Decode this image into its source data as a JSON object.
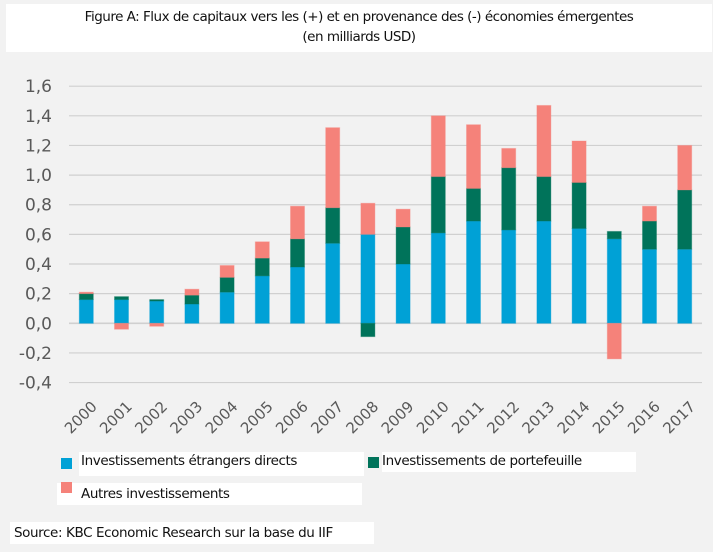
{
  "chart_data": {
    "type": "bar",
    "stacked": true,
    "title": "Figure A: Flux de capitaux vers les (+) et en provenance des (-) économies émergentes",
    "subtitle": "(en milliards USD)",
    "xlabel": "",
    "ylabel": "",
    "ylim": [
      -0.4,
      1.6
    ],
    "yticks": [
      -0.4,
      -0.2,
      0.0,
      0.2,
      0.4,
      0.6,
      0.8,
      1.0,
      1.2,
      1.4,
      1.6
    ],
    "ytick_labels": [
      "-0,4",
      "-0,2",
      "0,0",
      "0,2",
      "0,4",
      "0,6",
      "0,8",
      "1,0",
      "1,2",
      "1,4",
      "1,6"
    ],
    "grid": true,
    "legend_position": "bottom",
    "categories": [
      "2000",
      "2001",
      "2002",
      "2003",
      "2004",
      "2005",
      "2006",
      "2007",
      "2008",
      "2009",
      "2010",
      "2011",
      "2012",
      "2013",
      "2014",
      "2015",
      "2016",
      "2017"
    ],
    "series": [
      {
        "name": "Investissements étrangers directs",
        "color": "#00a1d6",
        "values": [
          0.16,
          0.16,
          0.15,
          0.13,
          0.21,
          0.32,
          0.38,
          0.54,
          0.6,
          0.4,
          0.61,
          0.69,
          0.63,
          0.69,
          0.64,
          0.57,
          0.5,
          0.5
        ]
      },
      {
        "name": "Investissements de portefeuille",
        "color": "#00735a",
        "values": [
          0.04,
          0.02,
          0.01,
          0.06,
          0.1,
          0.12,
          0.19,
          0.24,
          -0.09,
          0.25,
          0.38,
          0.22,
          0.42,
          0.3,
          0.31,
          0.05,
          0.19,
          0.4
        ]
      },
      {
        "name": "Autres investissements",
        "color": "#f5827a",
        "values": [
          0.01,
          -0.04,
          -0.02,
          0.04,
          0.08,
          0.11,
          0.22,
          0.54,
          0.21,
          0.12,
          0.41,
          0.43,
          0.13,
          0.48,
          0.28,
          -0.24,
          0.1,
          0.3
        ]
      }
    ]
  },
  "legend": {
    "items": [
      {
        "label": "Investissements étrangers directs",
        "color": "#00a1d6"
      },
      {
        "label": "Investissements de portefeuille",
        "color": "#00735a"
      },
      {
        "label": "Autres investissements",
        "color": "#f5827a"
      }
    ]
  },
  "source": "Source: KBC Economic Research sur la base du IIF"
}
